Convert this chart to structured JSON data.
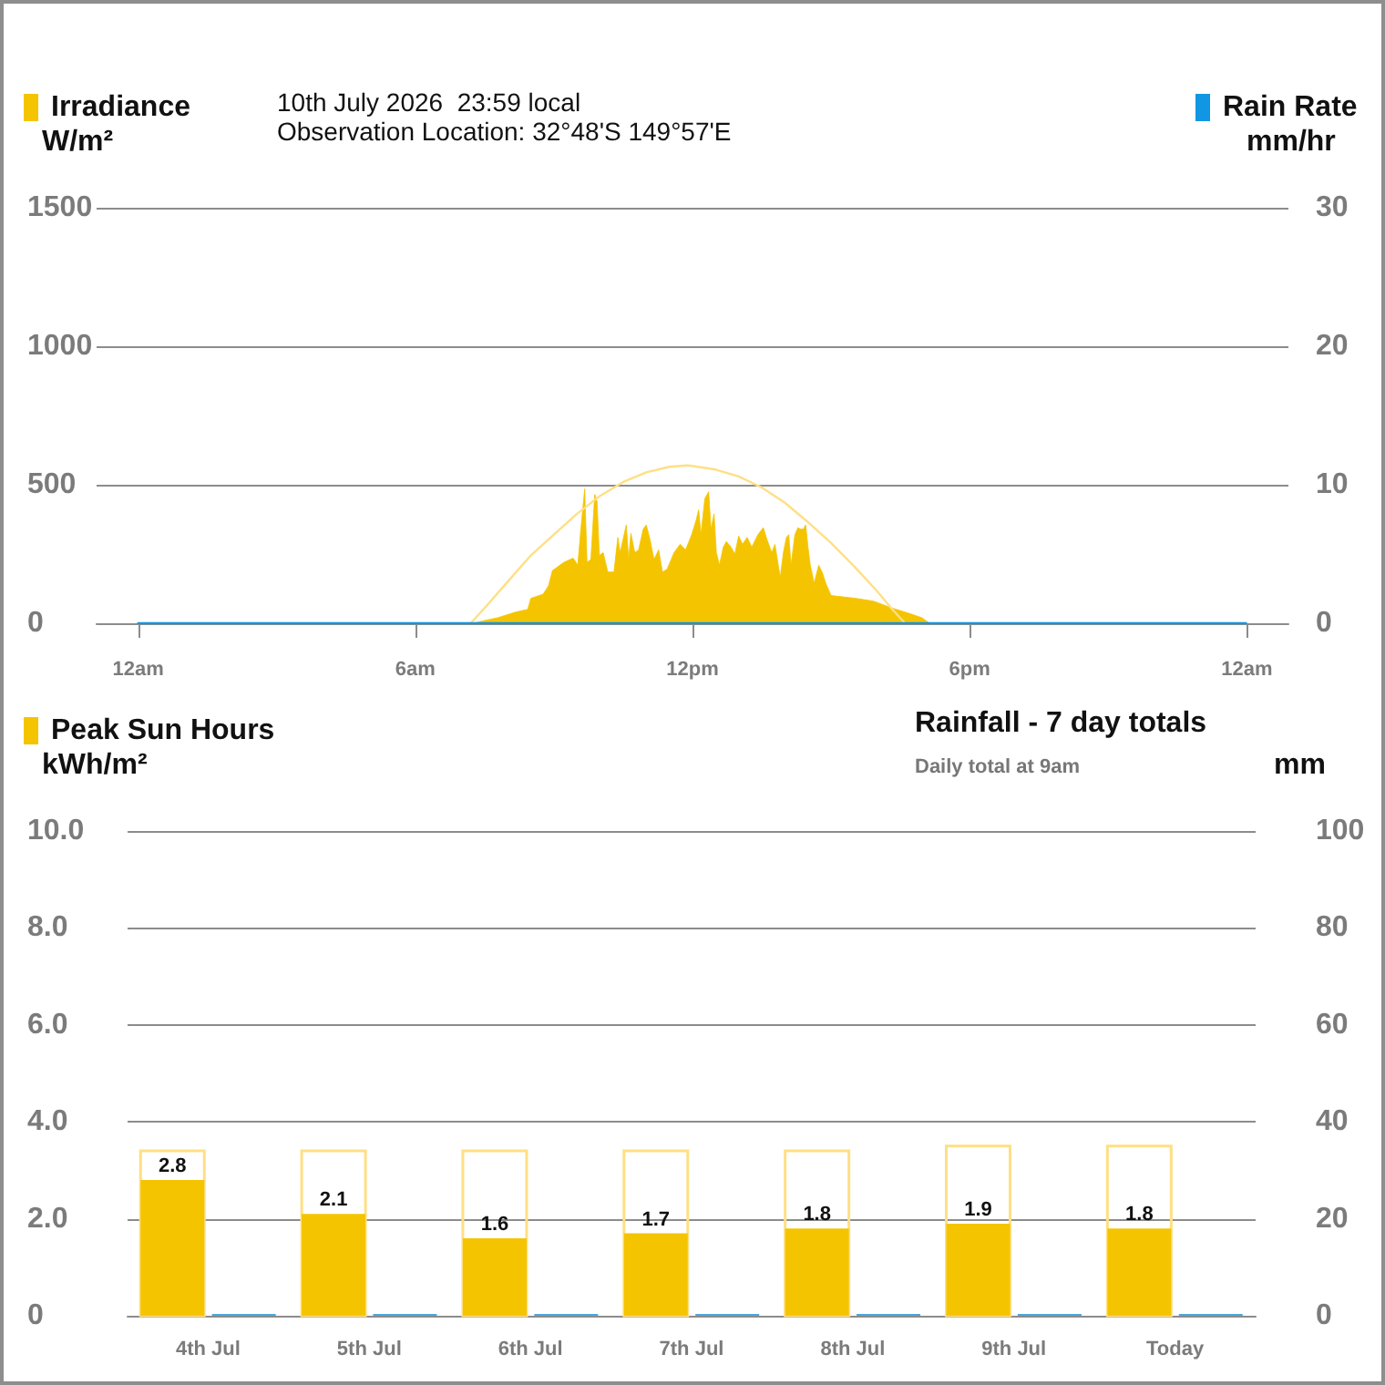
{
  "chart_data": [
    {
      "type": "area",
      "annotations": [
        "10th July 2026  23:59 local",
        "Observation Location: 32°48'S 149°57'E"
      ],
      "ylabel": "W/m²",
      "y2label": "mm/hr",
      "xlim": [
        "2026-07-09T23:06",
        "2026-07-11T00:54"
      ],
      "xticks": [
        {
          "value": "2026-07-10T00:00",
          "label": "12am"
        },
        {
          "value": "2026-07-10T06:00",
          "label": "6am"
        },
        {
          "value": "2026-07-10T12:00",
          "label": "12pm"
        },
        {
          "value": "2026-07-10T18:00",
          "label": "6pm"
        },
        {
          "value": "2026-07-11T00:00",
          "label": "12am"
        }
      ],
      "ylim": [
        0,
        1500
      ],
      "yticks": [
        0,
        500,
        1000,
        1500
      ],
      "y2lim": [
        0,
        30
      ],
      "y2ticks": [
        0,
        10,
        20,
        30
      ],
      "grid": "y",
      "legend": "top",
      "series": [
        {
          "name": "Irradiance",
          "color": "#f5c400",
          "x": [
            "2026-07-10T07:15",
            "2026-07-10T07:30",
            "2026-07-10T07:47",
            "2026-07-10T08:10",
            "2026-07-10T08:26",
            "2026-07-10T08:30",
            "2026-07-10T08:46",
            "2026-07-10T08:53",
            "2026-07-10T08:58",
            "2026-07-10T09:13",
            "2026-07-10T09:25",
            "2026-07-10T09:31",
            "2026-07-10T09:35",
            "2026-07-10T09:40",
            "2026-07-10T09:43",
            "2026-07-10T09:48",
            "2026-07-10T09:53",
            "2026-07-10T09:56",
            "2026-07-10T09:59",
            "2026-07-10T10:04",
            "2026-07-10T10:10",
            "2026-07-10T10:18",
            "2026-07-10T10:23",
            "2026-07-10T10:26",
            "2026-07-10T10:34",
            "2026-07-10T10:37",
            "2026-07-10T10:40",
            "2026-07-10T10:45",
            "2026-07-10T10:50",
            "2026-07-10T10:56",
            "2026-07-10T11:00",
            "2026-07-10T11:05",
            "2026-07-10T11:10",
            "2026-07-10T11:16",
            "2026-07-10T11:21",
            "2026-07-10T11:27",
            "2026-07-10T11:36",
            "2026-07-10T11:44",
            "2026-07-10T11:51",
            "2026-07-10T11:59",
            "2026-07-10T12:05",
            "2026-07-10T12:08",
            "2026-07-10T12:11",
            "2026-07-10T12:16",
            "2026-07-10T12:21",
            "2026-07-10T12:24",
            "2026-07-10T12:28",
            "2026-07-10T12:31",
            "2026-07-10T12:35",
            "2026-07-10T12:40",
            "2026-07-10T12:44",
            "2026-07-10T12:50",
            "2026-07-10T12:55",
            "2026-07-10T13:00",
            "2026-07-10T13:05",
            "2026-07-10T13:11",
            "2026-07-10T13:17",
            "2026-07-10T13:25",
            "2026-07-10T13:32",
            "2026-07-10T13:37",
            "2026-07-10T13:43",
            "2026-07-10T13:47",
            "2026-07-10T13:54",
            "2026-07-10T13:58",
            "2026-07-10T14:02",
            "2026-07-10T14:05",
            "2026-07-10T14:08",
            "2026-07-10T14:13",
            "2026-07-10T14:17",
            "2026-07-10T14:20",
            "2026-07-10T14:24",
            "2026-07-10T14:27",
            "2026-07-10T14:30",
            "2026-07-10T14:33",
            "2026-07-10T14:38",
            "2026-07-10T14:44",
            "2026-07-10T14:49",
            "2026-07-10T14:53",
            "2026-07-10T15:00",
            "2026-07-10T15:16",
            "2026-07-10T15:32",
            "2026-07-10T15:55",
            "2026-07-10T16:19",
            "2026-07-10T16:42",
            "2026-07-10T16:58",
            "2026-07-10T17:08"
          ],
          "values": [
            0,
            10,
            20,
            40,
            50,
            90,
            105,
            135,
            190,
            220,
            235,
            210,
            340,
            485,
            220,
            230,
            465,
            440,
            245,
            255,
            185,
            185,
            310,
            255,
            355,
            230,
            325,
            255,
            265,
            340,
            355,
            300,
            230,
            265,
            185,
            195,
            255,
            285,
            265,
            320,
            375,
            410,
            320,
            450,
            475,
            340,
            395,
            255,
            210,
            275,
            295,
            275,
            250,
            315,
            285,
            310,
            275,
            320,
            345,
            300,
            255,
            285,
            165,
            255,
            310,
            320,
            210,
            320,
            345,
            340,
            340,
            355,
            275,
            210,
            145,
            210,
            180,
            145,
            100,
            95,
            90,
            80,
            55,
            35,
            20,
            0
          ]
        },
        {
          "type": "line",
          "color": "#ffdf85",
          "x": [
            "2026-07-10T07:12",
            "2026-07-10T07:30",
            "2026-07-10T08:00",
            "2026-07-10T08:30",
            "2026-07-10T09:00",
            "2026-07-10T09:30",
            "2026-07-10T10:00",
            "2026-07-10T10:30",
            "2026-07-10T11:00",
            "2026-07-10T11:30",
            "2026-07-10T11:54",
            "2026-07-10T12:30",
            "2026-07-10T13:00",
            "2026-07-10T13:30",
            "2026-07-10T14:00",
            "2026-07-10T14:30",
            "2026-07-10T15:00",
            "2026-07-10T15:30",
            "2026-07-10T16:00",
            "2026-07-10T16:18",
            "2026-07-10T16:36"
          ],
          "values": [
            0,
            55,
            150,
            245,
            320,
            395,
            460,
            510,
            545,
            565,
            570,
            555,
            530,
            490,
            435,
            365,
            290,
            205,
            115,
            55,
            0
          ]
        },
        {
          "name": "Rain Rate",
          "type": "line",
          "axis": "y2",
          "color": "#1196e3",
          "x": [
            "2026-07-10T00:00",
            "2026-07-10T23:59"
          ],
          "values": [
            0,
            0
          ]
        }
      ]
    },
    {
      "type": "bar",
      "title": "Rainfall - 7 day totals",
      "subtitle": "Daily total at 9am",
      "ylabel": "kWh/m²",
      "y2label": "mm",
      "categories": [
        "4th Jul",
        "5th Jul",
        "6th Jul",
        "7th Jul",
        "8th Jul",
        "9th Jul",
        "Today"
      ],
      "ylim": [
        0,
        10
      ],
      "yticks": [
        0,
        {
          "value": 2,
          "label": "2.0"
        },
        {
          "value": 4,
          "label": "4.0"
        },
        {
          "value": 6,
          "label": "6.0"
        },
        {
          "value": 8,
          "label": "8.0"
        },
        {
          "value": 10,
          "label": "10.0"
        }
      ],
      "y2lim": [
        0,
        100
      ],
      "y2ticks": [
        0,
        20,
        40,
        60,
        80,
        100
      ],
      "grid": "y",
      "legend": "top",
      "series": [
        {
          "name": "Peak Sun Hours",
          "color": "#f5c400",
          "values": [
            2.8,
            2.1,
            1.6,
            1.7,
            1.8,
            1.9,
            1.8
          ],
          "value_labels": [
            "2.8",
            "2.1",
            "1.6",
            "1.7",
            "1.8",
            "1.9",
            "1.8"
          ]
        },
        {
          "axis": "y2",
          "color": "#4ea6dc",
          "values": [
            0,
            0,
            0,
            0,
            0,
            0,
            0
          ]
        },
        {
          "color": "#ffdf85",
          "line_style": "solid",
          "values": [
            3.4,
            3.4,
            3.4,
            3.4,
            3.4,
            3.5,
            3.5
          ]
        }
      ]
    }
  ]
}
